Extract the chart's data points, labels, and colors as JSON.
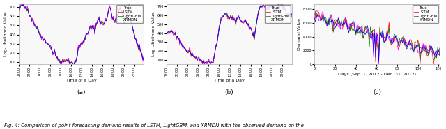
{
  "fig_width": 6.4,
  "fig_height": 1.85,
  "dpi": 100,
  "fig_facecolor": "#ffffff",
  "axes_bg": "#f8f8f8",
  "colors": {
    "True": "#0000ff",
    "LSTM": "#ff0000",
    "LightGBM": "#008000",
    "XRMDN": "#ff00ff"
  },
  "linewidth": 0.55,
  "legend_fontsize": 4.0,
  "tick_fontsize": 3.5,
  "label_fontsize": 4.5,
  "subplot_label_fontsize": 6.5,
  "subplot_labels": [
    "(a)",
    "(b)",
    "(c)"
  ],
  "caption": "Fig. 4: Comparison of point forecasting demand results of LSTM, LightGBM, and XRMDN with the observed demand on the",
  "caption_fontsize": 5.0,
  "plot_a": {
    "ylabel": "Log-Likelihood Value",
    "xlabel": "Time of a Day",
    "ylim": [
      80,
      730
    ],
    "yticks": [
      100,
      200,
      300,
      400,
      500,
      600,
      700
    ],
    "n_points": 144
  },
  "plot_b": {
    "ylabel": "Log-Likelihood Value",
    "xlabel": "Time of a Day",
    "ylim": [
      50,
      730
    ],
    "yticks": [
      100,
      200,
      300,
      400,
      500,
      600,
      700
    ],
    "n_points": 144
  },
  "plot_c": {
    "ylabel": "Demand Value",
    "xlabel": "Days (Sep. 1, 2012 - Dec. 31, 2012)",
    "ylim": [
      0,
      8800
    ],
    "yticks": [
      0,
      2000,
      4000,
      6000,
      8000
    ],
    "n_points": 122
  }
}
